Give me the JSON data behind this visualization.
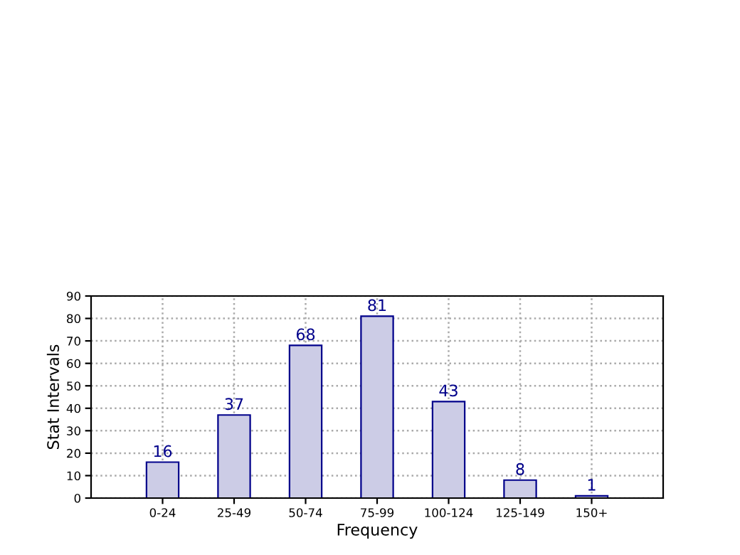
{
  "chart_data": {
    "type": "bar",
    "xlabel": "Frequency",
    "ylabel": "Stat Intervals",
    "categories": [
      "0-24",
      "25-49",
      "50-74",
      "75-99",
      "100-124",
      "125-149",
      "150+"
    ],
    "values": [
      16,
      37,
      68,
      81,
      43,
      8,
      1
    ],
    "color": "#ccccE6",
    "ylim": [
      0,
      90
    ],
    "yticks": [
      0,
      10,
      20,
      30,
      40,
      50,
      60,
      70,
      80,
      90
    ],
    "grid": true,
    "data_labels": true
  }
}
